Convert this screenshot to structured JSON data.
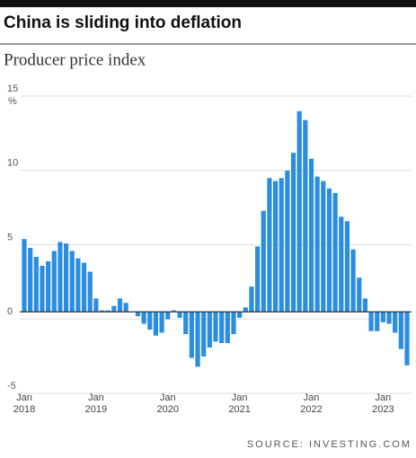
{
  "chart_data": {
    "type": "bar",
    "title": "China is sliding into deflation",
    "subtitle": "Producer price index",
    "y_unit": "%",
    "source": "SOURCE: INVESTING.COM",
    "categories": [
      "Jan 2018",
      null,
      null,
      null,
      null,
      null,
      null,
      null,
      null,
      null,
      null,
      null,
      "Jan 2019",
      null,
      null,
      null,
      null,
      null,
      null,
      null,
      null,
      null,
      null,
      null,
      "Jan 2020",
      null,
      null,
      null,
      null,
      null,
      null,
      null,
      null,
      null,
      null,
      null,
      "Jan 2021",
      null,
      null,
      null,
      null,
      null,
      null,
      null,
      null,
      null,
      null,
      null,
      "Jan 2022",
      null,
      null,
      null,
      null,
      null,
      null,
      null,
      null,
      null,
      null,
      null,
      "Jan 2023",
      null,
      null,
      null,
      null
    ],
    "values": [
      4.9,
      4.3,
      3.7,
      3.1,
      3.4,
      4.1,
      4.7,
      4.6,
      4.1,
      3.6,
      3.3,
      2.7,
      0.9,
      0.1,
      0.1,
      0.4,
      0.9,
      0.6,
      0.0,
      -0.3,
      -0.8,
      -1.2,
      -1.6,
      -1.4,
      -0.5,
      0.1,
      -0.4,
      -1.5,
      -3.1,
      -3.7,
      -3.0,
      -2.4,
      -2.0,
      -2.1,
      -2.1,
      -1.5,
      -0.4,
      0.3,
      1.7,
      4.4,
      6.8,
      9.0,
      8.8,
      9.0,
      9.5,
      10.7,
      13.5,
      12.9,
      10.3,
      9.1,
      8.8,
      8.3,
      8.0,
      6.4,
      6.1,
      4.2,
      2.3,
      0.9,
      -1.3,
      -1.3,
      -0.7,
      -0.8,
      -1.4,
      -2.5,
      -3.6
    ],
    "color": "#2b8de0",
    "ylim": [
      -5,
      15
    ],
    "yticks": [
      -5,
      0,
      5,
      10,
      15
    ],
    "grid": true
  }
}
